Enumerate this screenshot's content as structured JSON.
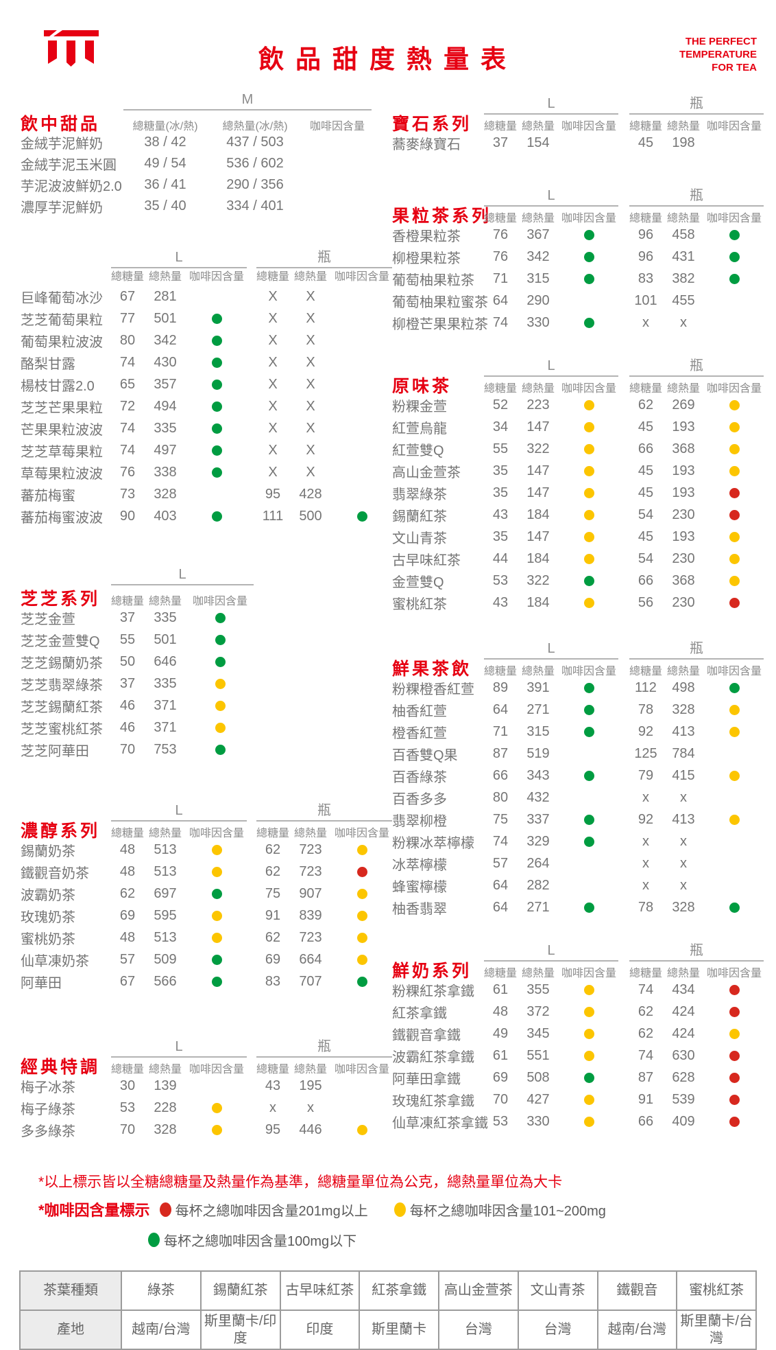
{
  "colors": {
    "accent": "#e60012",
    "text": "#757575",
    "headgray": "#8c8c8c",
    "line": "#b3b3b3",
    "dot_green": "#009c41",
    "dot_yellow": "#fcc500",
    "dot_red": "#d7281e",
    "table_border": "#9b9b9b",
    "table_bg": "#ececec"
  },
  "header": {
    "title": "飲品甜度熱量表",
    "tagline": [
      "THE PERFECT",
      "TEMPERATURE",
      "FOR TEA"
    ]
  },
  "sections_left": [
    {
      "key": "sweet",
      "variant": "sweet",
      "title": "飲中甜品",
      "groups": [
        {
          "size": "M",
          "cols": [
            "總糖量(冰/熱)",
            "總熱量(冰/熱)",
            "咖啡因含量"
          ]
        }
      ],
      "rows": [
        {
          "name": "金絨芋泥鮮奶",
          "cells": [
            "38 / 42",
            "437 / 503",
            ""
          ]
        },
        {
          "name": "金絨芋泥玉米圓",
          "cells": [
            "49 / 54",
            "536 / 602",
            ""
          ]
        },
        {
          "name": "芋泥波波鮮奶2.0",
          "cells": [
            "36 / 41",
            "290 / 356",
            ""
          ]
        },
        {
          "name": "濃厚芋泥鮮奶",
          "cells": [
            "35 / 40",
            "334 / 401",
            ""
          ]
        }
      ]
    },
    {
      "key": "fruit",
      "variant": "two",
      "title": "",
      "groups": [
        {
          "size": "L",
          "cols": [
            "總糖量",
            "總熱量",
            "咖啡因含量"
          ]
        },
        {
          "size": "瓶",
          "cols": [
            "總糖量",
            "總熱量",
            "咖啡因含量"
          ]
        }
      ],
      "rows": [
        {
          "name": "巨峰葡萄冰沙",
          "cells": [
            "67",
            "281",
            "",
            "X",
            "X",
            ""
          ]
        },
        {
          "name": "芝芝葡萄果粒",
          "cells": [
            "77",
            "501",
            "green",
            "X",
            "X",
            ""
          ]
        },
        {
          "name": "葡萄果粒波波",
          "cells": [
            "80",
            "342",
            "green",
            "X",
            "X",
            ""
          ]
        },
        {
          "name": "酪梨甘露",
          "cells": [
            "74",
            "430",
            "green",
            "X",
            "X",
            ""
          ]
        },
        {
          "name": "楊枝甘露2.0",
          "cells": [
            "65",
            "357",
            "green",
            "X",
            "X",
            ""
          ]
        },
        {
          "name": "芝芝芒果果粒",
          "cells": [
            "72",
            "494",
            "green",
            "X",
            "X",
            ""
          ]
        },
        {
          "name": "芒果果粒波波",
          "cells": [
            "74",
            "335",
            "green",
            "X",
            "X",
            ""
          ]
        },
        {
          "name": "芝芝草莓果粒",
          "cells": [
            "74",
            "497",
            "green",
            "X",
            "X",
            ""
          ]
        },
        {
          "name": "草莓果粒波波",
          "cells": [
            "76",
            "338",
            "green",
            "X",
            "X",
            ""
          ]
        },
        {
          "name": "蕃茄梅蜜",
          "cells": [
            "73",
            "328",
            "",
            "95",
            "428",
            ""
          ]
        },
        {
          "name": "蕃茄梅蜜波波",
          "cells": [
            "90",
            "403",
            "green",
            "111",
            "500",
            "green"
          ]
        }
      ]
    },
    {
      "key": "cheese",
      "variant": "one",
      "title": "芝芝系列",
      "groups": [
        {
          "size": "L",
          "cols": [
            "總糖量",
            "總熱量",
            "咖啡因含量"
          ]
        }
      ],
      "rows": [
        {
          "name": "芝芝金萱",
          "cells": [
            "37",
            "335",
            "green"
          ]
        },
        {
          "name": "芝芝金萱雙Q",
          "cells": [
            "55",
            "501",
            "green"
          ]
        },
        {
          "name": "芝芝錫蘭奶茶",
          "cells": [
            "50",
            "646",
            "green"
          ]
        },
        {
          "name": "芝芝翡翠綠茶",
          "cells": [
            "37",
            "335",
            "yellow"
          ]
        },
        {
          "name": "芝芝錫蘭紅茶",
          "cells": [
            "46",
            "371",
            "yellow"
          ]
        },
        {
          "name": "芝芝蜜桃紅茶",
          "cells": [
            "46",
            "371",
            "yellow"
          ]
        },
        {
          "name": "芝芝阿華田",
          "cells": [
            "70",
            "753",
            "green"
          ]
        }
      ]
    },
    {
      "key": "rich",
      "variant": "two",
      "title": "濃醇系列",
      "groups": [
        {
          "size": "L",
          "cols": [
            "總糖量",
            "總熱量",
            "咖啡因含量"
          ]
        },
        {
          "size": "瓶",
          "cols": [
            "總糖量",
            "總熱量",
            "咖啡因含量"
          ]
        }
      ],
      "rows": [
        {
          "name": "錫蘭奶茶",
          "cells": [
            "48",
            "513",
            "yellow",
            "62",
            "723",
            "yellow"
          ]
        },
        {
          "name": "鐵觀音奶茶",
          "cells": [
            "48",
            "513",
            "yellow",
            "62",
            "723",
            "red"
          ]
        },
        {
          "name": "波霸奶茶",
          "cells": [
            "62",
            "697",
            "green",
            "75",
            "907",
            "yellow"
          ]
        },
        {
          "name": "玫瑰奶茶",
          "cells": [
            "69",
            "595",
            "yellow",
            "91",
            "839",
            "yellow"
          ]
        },
        {
          "name": "蜜桃奶茶",
          "cells": [
            "48",
            "513",
            "yellow",
            "62",
            "723",
            "yellow"
          ]
        },
        {
          "name": "仙草凍奶茶",
          "cells": [
            "57",
            "509",
            "green",
            "69",
            "664",
            "yellow"
          ]
        },
        {
          "name": "阿華田",
          "cells": [
            "67",
            "566",
            "green",
            "83",
            "707",
            "green"
          ]
        }
      ]
    },
    {
      "key": "classic",
      "variant": "two",
      "title": "經典特調",
      "groups": [
        {
          "size": "L",
          "cols": [
            "總糖量",
            "總熱量",
            "咖啡因含量"
          ]
        },
        {
          "size": "瓶",
          "cols": [
            "總糖量",
            "總熱量",
            "咖啡因含量"
          ]
        }
      ],
      "rows": [
        {
          "name": "梅子冰茶",
          "cells": [
            "30",
            "139",
            "",
            "43",
            "195",
            ""
          ]
        },
        {
          "name": "梅子綠茶",
          "cells": [
            "53",
            "228",
            "yellow",
            "x",
            "x",
            ""
          ]
        },
        {
          "name": "多多綠茶",
          "cells": [
            "70",
            "328",
            "yellow",
            "95",
            "446",
            "yellow"
          ]
        }
      ]
    }
  ],
  "sections_right": [
    {
      "key": "gem",
      "variant": "two",
      "title": "寶石系列",
      "groups": [
        {
          "size": "L",
          "cols": [
            "總糖量",
            "總熱量",
            "咖啡因含量"
          ]
        },
        {
          "size": "瓶",
          "cols": [
            "總糖量",
            "總熱量",
            "咖啡因含量"
          ]
        }
      ],
      "rows": [
        {
          "name": "蕎麥綠寶石",
          "cells": [
            "37",
            "154",
            "",
            "45",
            "198",
            ""
          ]
        }
      ]
    },
    {
      "key": "fruit-tea",
      "variant": "two",
      "title": "果粒茶系列",
      "groups": [
        {
          "size": "L",
          "cols": [
            "總糖量",
            "總熱量",
            "咖啡因含量"
          ]
        },
        {
          "size": "瓶",
          "cols": [
            "總糖量",
            "總熱量",
            "咖啡因含量"
          ]
        }
      ],
      "rows": [
        {
          "name": "香橙果粒茶",
          "cells": [
            "76",
            "367",
            "green",
            "96",
            "458",
            "green"
          ]
        },
        {
          "name": "柳橙果粒茶",
          "cells": [
            "76",
            "342",
            "green",
            "96",
            "431",
            "green"
          ]
        },
        {
          "name": "葡萄柚果粒茶",
          "cells": [
            "71",
            "315",
            "green",
            "83",
            "382",
            "green"
          ]
        },
        {
          "name": "葡萄柚果粒蜜茶",
          "cells": [
            "64",
            "290",
            "",
            "101",
            "455",
            ""
          ]
        },
        {
          "name": "柳橙芒果果粒茶",
          "cells": [
            "74",
            "330",
            "green",
            "x",
            "x",
            ""
          ]
        }
      ]
    },
    {
      "key": "original",
      "variant": "two",
      "title": "原味茶",
      "groups": [
        {
          "size": "L",
          "cols": [
            "總糖量",
            "總熱量",
            "咖啡因含量"
          ]
        },
        {
          "size": "瓶",
          "cols": [
            "總糖量",
            "總熱量",
            "咖啡因含量"
          ]
        }
      ],
      "rows": [
        {
          "name": "粉粿金萱",
          "cells": [
            "52",
            "223",
            "yellow",
            "62",
            "269",
            "yellow"
          ]
        },
        {
          "name": "紅萱烏龍",
          "cells": [
            "34",
            "147",
            "yellow",
            "45",
            "193",
            "yellow"
          ]
        },
        {
          "name": "紅萱雙Q",
          "cells": [
            "55",
            "322",
            "yellow",
            "66",
            "368",
            "yellow"
          ]
        },
        {
          "name": "高山金萱茶",
          "cells": [
            "35",
            "147",
            "yellow",
            "45",
            "193",
            "yellow"
          ]
        },
        {
          "name": "翡翠綠茶",
          "cells": [
            "35",
            "147",
            "yellow",
            "45",
            "193",
            "red"
          ]
        },
        {
          "name": "錫蘭紅茶",
          "cells": [
            "43",
            "184",
            "yellow",
            "54",
            "230",
            "red"
          ]
        },
        {
          "name": "文山青茶",
          "cells": [
            "35",
            "147",
            "yellow",
            "45",
            "193",
            "yellow"
          ]
        },
        {
          "name": "古早味紅茶",
          "cells": [
            "44",
            "184",
            "yellow",
            "54",
            "230",
            "yellow"
          ]
        },
        {
          "name": "金萱雙Q",
          "cells": [
            "53",
            "322",
            "green",
            "66",
            "368",
            "yellow"
          ]
        },
        {
          "name": "蜜桃紅茶",
          "cells": [
            "43",
            "184",
            "yellow",
            "56",
            "230",
            "red"
          ]
        }
      ]
    },
    {
      "key": "fresh-fruit",
      "variant": "two",
      "title": "鮮果茶飲",
      "groups": [
        {
          "size": "L",
          "cols": [
            "總糖量",
            "總熱量",
            "咖啡因含量"
          ]
        },
        {
          "size": "瓶",
          "cols": [
            "總糖量",
            "總熱量",
            "咖啡因含量"
          ]
        }
      ],
      "rows": [
        {
          "name": "粉粿橙香紅萱",
          "cells": [
            "89",
            "391",
            "green",
            "112",
            "498",
            "green"
          ]
        },
        {
          "name": "柚香紅萱",
          "cells": [
            "64",
            "271",
            "green",
            "78",
            "328",
            "yellow"
          ]
        },
        {
          "name": "橙香紅萱",
          "cells": [
            "71",
            "315",
            "green",
            "92",
            "413",
            "yellow"
          ]
        },
        {
          "name": "百香雙Q果",
          "cells": [
            "87",
            "519",
            "",
            "125",
            "784",
            ""
          ]
        },
        {
          "name": "百香綠茶",
          "cells": [
            "66",
            "343",
            "green",
            "79",
            "415",
            "yellow"
          ]
        },
        {
          "name": "百香多多",
          "cells": [
            "80",
            "432",
            "",
            "x",
            "x",
            ""
          ]
        },
        {
          "name": "翡翠柳橙",
          "cells": [
            "75",
            "337",
            "green",
            "92",
            "413",
            "yellow"
          ]
        },
        {
          "name": "粉粿冰萃檸檬",
          "cells": [
            "74",
            "329",
            "green",
            "x",
            "x",
            ""
          ]
        },
        {
          "name": "冰萃檸檬",
          "cells": [
            "57",
            "264",
            "",
            "x",
            "x",
            ""
          ]
        },
        {
          "name": "蜂蜜檸檬",
          "cells": [
            "64",
            "282",
            "",
            "x",
            "x",
            ""
          ]
        },
        {
          "name": "柚香翡翠",
          "cells": [
            "64",
            "271",
            "green",
            "78",
            "328",
            "green"
          ]
        }
      ]
    },
    {
      "key": "milk",
      "variant": "two",
      "title": "鮮奶系列",
      "groups": [
        {
          "size": "L",
          "cols": [
            "總糖量",
            "總熱量",
            "咖啡因含量"
          ]
        },
        {
          "size": "瓶",
          "cols": [
            "總糖量",
            "總熱量",
            "咖啡因含量"
          ]
        }
      ],
      "rows": [
        {
          "name": "粉粿紅茶拿鐵",
          "cells": [
            "61",
            "355",
            "yellow",
            "74",
            "434",
            "red"
          ]
        },
        {
          "name": "紅茶拿鐵",
          "cells": [
            "48",
            "372",
            "yellow",
            "62",
            "424",
            "red"
          ]
        },
        {
          "name": "鐵觀音拿鐵",
          "cells": [
            "49",
            "345",
            "yellow",
            "62",
            "424",
            "yellow"
          ]
        },
        {
          "name": "波霸紅茶拿鐵",
          "cells": [
            "61",
            "551",
            "yellow",
            "74",
            "630",
            "red"
          ]
        },
        {
          "name": "阿華田拿鐵",
          "cells": [
            "69",
            "508",
            "green",
            "87",
            "628",
            "red"
          ]
        },
        {
          "name": "玫瑰紅茶拿鐵",
          "cells": [
            "70",
            "427",
            "yellow",
            "91",
            "539",
            "red"
          ]
        },
        {
          "name": "仙草凍紅茶拿鐵",
          "cells": [
            "53",
            "330",
            "yellow",
            "66",
            "409",
            "red"
          ]
        }
      ]
    }
  ],
  "footnotes": {
    "line1": "*以上標示皆以全糖總糖量及熱量作為基準，總糖量單位為公克，總熱量單位為大卡",
    "caffeine_label": "*咖啡因含量標示",
    "legend": [
      {
        "level": "red",
        "text": "每杯之總咖啡因含量201mg以上"
      },
      {
        "level": "yellow",
        "text": "每杯之總咖啡因含量101~200mg"
      },
      {
        "level": "green",
        "text": "每杯之總咖啡因含量100mg以下"
      }
    ]
  },
  "origin_table": {
    "rows": [
      [
        "茶葉種類",
        "綠茶",
        "錫蘭紅茶",
        "古早味紅茶",
        "紅茶拿鐵",
        "高山金萱茶",
        "文山青茶",
        "鐵觀音",
        "蜜桃紅茶"
      ],
      [
        "產地",
        "越南/台灣",
        "斯里蘭卡/印度",
        "印度",
        "斯里蘭卡",
        "台灣",
        "台灣",
        "越南/台灣",
        "斯里蘭卡/台灣"
      ]
    ]
  }
}
